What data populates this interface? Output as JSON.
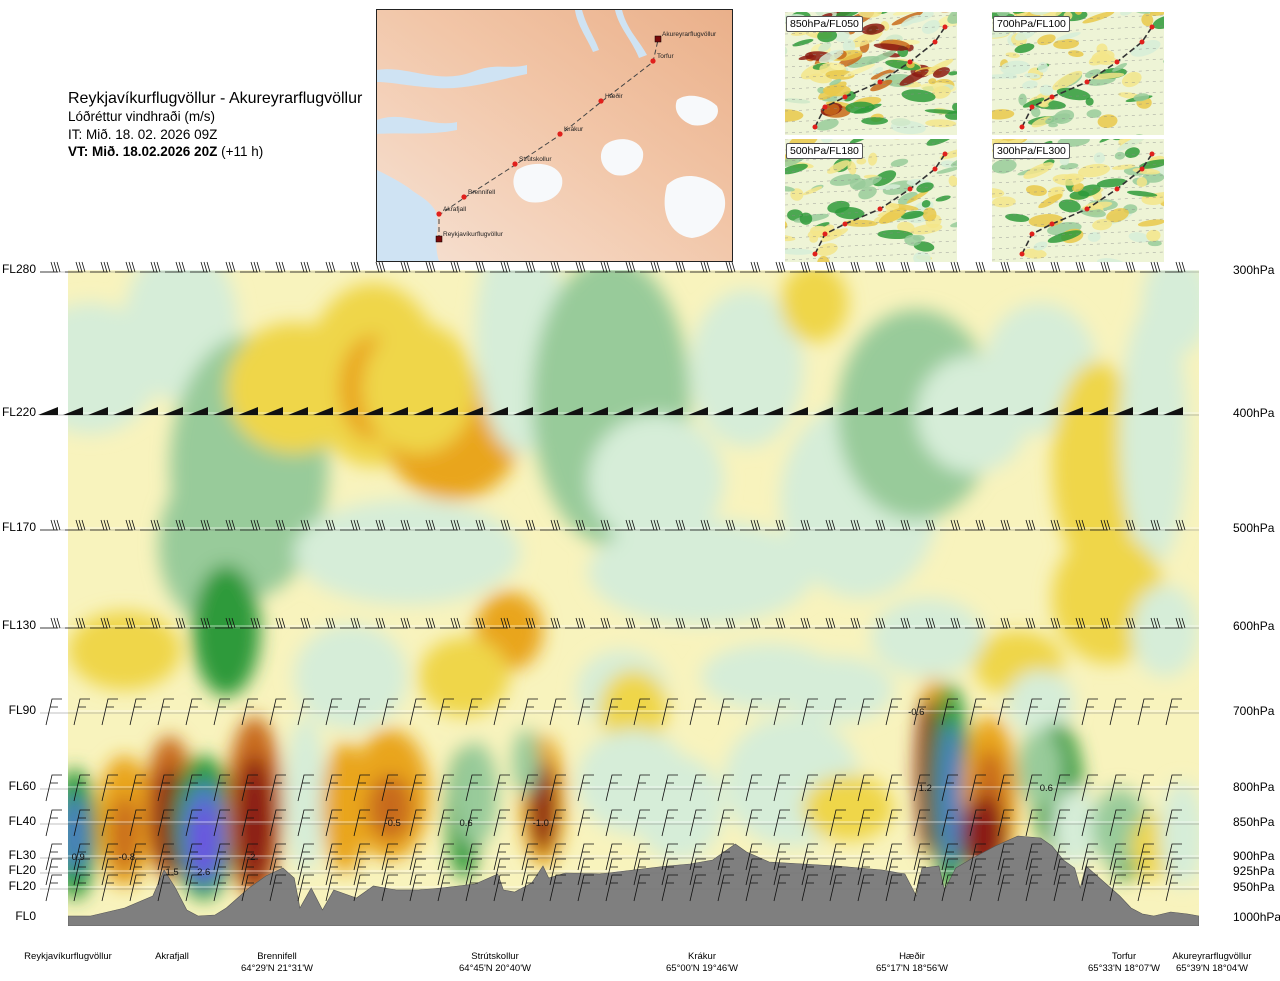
{
  "header": {
    "title": "Reykjavíkurflugvöllur - Akureyrarflugvöllur",
    "variable": "Lóðréttur vindhraði (m/s)",
    "init_time": "IT: Mið. 18. 02. 2026 09Z",
    "valid_time": "VT: Mið. 18.02.2026 20Z",
    "lead_time": "(+11 h)"
  },
  "route_map": {
    "waypoints": [
      "Akureyrarflugvöllur",
      "Torfur",
      "Hæðir",
      "Krákur",
      "Strútskollur",
      "Brennifell",
      "Akrafjall",
      "Reykjavíkurflugvöllur"
    ]
  },
  "thumbnails": [
    {
      "label": "850hPa/FL050"
    },
    {
      "label": "700hPa/FL100"
    },
    {
      "label": "500hPa/FL180"
    },
    {
      "label": "300hPa/FL300"
    }
  ],
  "colors": {
    "terrain": "#7f7f7f",
    "updraft_weak": "#d6edd8",
    "updraft_mid": "#98cb9a",
    "updraft_strong": "#2e9a3a",
    "updraft_max": "#4a7fc0",
    "updraft_extreme": "#6b54e0",
    "downdraft_weak": "#f7f0a6",
    "downdraft_mid": "#efd64a",
    "downdraft_strong": "#e9a51e",
    "downdraft_max": "#c86a1a",
    "downdraft_extreme": "#8b1a12",
    "route_line": "#444444",
    "waypoint": "#e0201c"
  },
  "chart_data": {
    "type": "heatmap",
    "title": "Lóðréttur vindhraði (m/s)",
    "x_stations": [
      "Reykjavíkurflugvöllur",
      "Akrafjall",
      "Brennifell",
      "Strútskollur",
      "Krákur",
      "Hæðir",
      "Torfur",
      "Akureyrarflugvöllur"
    ],
    "x_coordinates": [
      "",
      "",
      "64°29'N 21°31'W",
      "64°45'N 20°40'W",
      "65°00'N 19°46'W",
      "65°17'N 18°56'W",
      "65°33'N 18°07'W",
      "65°39'N 18°04'W"
    ],
    "y_flight_levels": [
      "FL280",
      "FL220",
      "FL170",
      "FL130",
      "FL90",
      "FL60",
      "FL40",
      "FL30",
      "FL20",
      "FL20",
      "FL0"
    ],
    "y_pressure_levels": [
      "300hPa",
      "400hPa",
      "500hPa",
      "600hPa",
      "700hPa",
      "800hPa",
      "850hPa",
      "900hPa",
      "925hPa",
      "950hPa",
      "1000hPa"
    ],
    "y_pressure_hpa": [
      300,
      400,
      500,
      600,
      700,
      800,
      850,
      900,
      925,
      950,
      1000
    ],
    "value_labels": [
      {
        "station_pos": 0.009,
        "hpa": 900,
        "text": "0.9"
      },
      {
        "station_pos": 0.052,
        "hpa": 900,
        "text": "-0.8"
      },
      {
        "station_pos": 0.092,
        "hpa": 925,
        "text": "1.5"
      },
      {
        "station_pos": 0.12,
        "hpa": 925,
        "text": "2.6"
      },
      {
        "station_pos": 0.162,
        "hpa": 900,
        "text": "-2"
      },
      {
        "station_pos": 0.287,
        "hpa": 850,
        "text": "-0.5"
      },
      {
        "station_pos": 0.352,
        "hpa": 850,
        "text": "0.6"
      },
      {
        "station_pos": 0.418,
        "hpa": 850,
        "text": "-1.0"
      },
      {
        "station_pos": 0.75,
        "hpa": 700,
        "text": "-0.6"
      },
      {
        "station_pos": 0.758,
        "hpa": 800,
        "text": "1.2"
      },
      {
        "station_pos": 0.865,
        "hpa": 800,
        "text": "0.6"
      }
    ],
    "legend": "none",
    "grid": false
  }
}
